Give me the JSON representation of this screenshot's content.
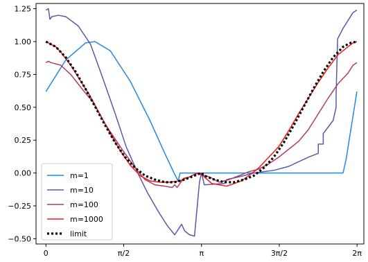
{
  "chart_data": {
    "type": "line",
    "title": "",
    "xlabel": "",
    "ylabel": "",
    "xlim": [
      -0.2,
      6.42
    ],
    "ylim": [
      -0.54,
      1.29
    ],
    "x_ticks": [
      {
        "value": 0,
        "label": "0"
      },
      {
        "value": 1.5708,
        "label": "π/2"
      },
      {
        "value": 3.1416,
        "label": "π"
      },
      {
        "value": 4.7124,
        "label": "3π/2"
      },
      {
        "value": 6.2832,
        "label": "2π"
      }
    ],
    "y_ticks": [
      {
        "value": -0.5,
        "label": "−0.50"
      },
      {
        "value": -0.25,
        "label": "−0.25"
      },
      {
        "value": 0.0,
        "label": "0.00"
      },
      {
        "value": 0.25,
        "label": "0.25"
      },
      {
        "value": 0.5,
        "label": "0.50"
      },
      {
        "value": 0.75,
        "label": "0.75"
      },
      {
        "value": 1.0,
        "label": "1.00"
      },
      {
        "value": 1.25,
        "label": "1.25"
      }
    ],
    "grid": false,
    "legend_position": "lower-left",
    "series": [
      {
        "name": "m=1",
        "color": "#1f87e8",
        "style": "solid",
        "points": [
          [
            0,
            0.62
          ],
          [
            0.4,
            0.86
          ],
          [
            0.8,
            0.99
          ],
          [
            0.99,
            1.0
          ],
          [
            1.3,
            0.93
          ],
          [
            1.7,
            0.7
          ],
          [
            2.1,
            0.4
          ],
          [
            2.4,
            0.15
          ],
          [
            2.6,
            -0.01
          ],
          [
            2.67,
            -0.06
          ],
          [
            2.71,
            0.0
          ],
          [
            6.0,
            0.0
          ],
          [
            6.06,
            0.1
          ],
          [
            6.28,
            0.62
          ]
        ]
      },
      {
        "name": "m=10",
        "color": "#5459a8",
        "style": "solid",
        "points": [
          [
            0,
            1.24
          ],
          [
            0.05,
            1.25
          ],
          [
            0.08,
            1.17
          ],
          [
            0.12,
            1.19
          ],
          [
            0.25,
            1.2
          ],
          [
            0.4,
            1.19
          ],
          [
            0.65,
            1.12
          ],
          [
            0.9,
            0.98
          ],
          [
            1.15,
            0.72
          ],
          [
            1.4,
            0.45
          ],
          [
            1.62,
            0.2
          ],
          [
            1.88,
            -0.02
          ],
          [
            2.05,
            -0.15
          ],
          [
            2.28,
            -0.3
          ],
          [
            2.45,
            -0.4
          ],
          [
            2.6,
            -0.47
          ],
          [
            2.74,
            -0.39
          ],
          [
            2.8,
            -0.44
          ],
          [
            2.9,
            -0.47
          ],
          [
            3.0,
            -0.48
          ],
          [
            3.1,
            -0.07
          ],
          [
            3.14,
            0.0
          ],
          [
            3.2,
            -0.09
          ],
          [
            3.6,
            -0.08
          ],
          [
            3.65,
            -0.05
          ],
          [
            4.0,
            -0.02
          ],
          [
            4.2,
            0.0
          ],
          [
            4.6,
            0.02
          ],
          [
            4.9,
            0.05
          ],
          [
            5.3,
            0.12
          ],
          [
            5.5,
            0.15
          ],
          [
            5.5,
            0.22
          ],
          [
            5.6,
            0.22
          ],
          [
            5.6,
            0.3
          ],
          [
            5.7,
            0.35
          ],
          [
            5.8,
            0.4
          ],
          [
            5.86,
            0.5
          ],
          [
            5.86,
            0.6
          ],
          [
            5.89,
            1.02
          ],
          [
            6.0,
            1.1
          ],
          [
            6.1,
            1.16
          ],
          [
            6.2,
            1.22
          ],
          [
            6.28,
            1.24
          ]
        ]
      },
      {
        "name": "m=100",
        "color": "#b03a62",
        "style": "solid",
        "points": [
          [
            0,
            0.84
          ],
          [
            0.05,
            0.85
          ],
          [
            0.1,
            0.84
          ],
          [
            0.3,
            0.82
          ],
          [
            0.5,
            0.75
          ],
          [
            0.75,
            0.63
          ],
          [
            0.95,
            0.54
          ],
          [
            1.2,
            0.37
          ],
          [
            1.5,
            0.2
          ],
          [
            1.8,
            0.04
          ],
          [
            2.0,
            -0.05
          ],
          [
            2.1,
            -0.07
          ],
          [
            2.2,
            -0.09
          ],
          [
            2.4,
            -0.1
          ],
          [
            2.55,
            -0.11
          ],
          [
            2.6,
            -0.09
          ],
          [
            2.65,
            -0.11
          ],
          [
            2.78,
            -0.04
          ],
          [
            2.9,
            -0.03
          ],
          [
            3.0,
            -0.01
          ],
          [
            3.1,
            0.0
          ],
          [
            3.2,
            -0.02
          ],
          [
            3.3,
            -0.03
          ],
          [
            3.5,
            -0.07
          ],
          [
            3.6,
            -0.06
          ],
          [
            3.7,
            -0.05
          ],
          [
            3.9,
            -0.02
          ],
          [
            4.1,
            0.01
          ],
          [
            4.3,
            0.03
          ],
          [
            4.5,
            0.07
          ],
          [
            4.7,
            0.12
          ],
          [
            4.9,
            0.18
          ],
          [
            5.1,
            0.24
          ],
          [
            5.3,
            0.33
          ],
          [
            5.5,
            0.45
          ],
          [
            5.7,
            0.57
          ],
          [
            5.9,
            0.68
          ],
          [
            6.1,
            0.76
          ],
          [
            6.2,
            0.82
          ],
          [
            6.28,
            0.84
          ]
        ]
      },
      {
        "name": "m=1000",
        "color": "#ee1b1b",
        "style": "solid",
        "points": [
          [
            0,
            1.0
          ],
          [
            0.1,
            0.98
          ],
          [
            0.2,
            0.96
          ],
          [
            0.3,
            0.92
          ],
          [
            0.5,
            0.82
          ],
          [
            0.7,
            0.7
          ],
          [
            0.9,
            0.58
          ],
          [
            1.1,
            0.44
          ],
          [
            1.3,
            0.3
          ],
          [
            1.5,
            0.17
          ],
          [
            1.7,
            0.06
          ],
          [
            1.9,
            -0.02
          ],
          [
            2.1,
            -0.06
          ],
          [
            2.3,
            -0.07
          ],
          [
            2.5,
            -0.07
          ],
          [
            2.7,
            -0.06
          ],
          [
            2.9,
            -0.03
          ],
          [
            3.0,
            -0.01
          ],
          [
            3.1,
            0.0
          ],
          [
            3.2,
            -0.03
          ],
          [
            3.35,
            -0.08
          ],
          [
            3.5,
            -0.09
          ],
          [
            3.65,
            -0.1
          ],
          [
            3.8,
            -0.08
          ],
          [
            3.95,
            -0.06
          ],
          [
            4.1,
            -0.02
          ],
          [
            4.3,
            0.04
          ],
          [
            4.5,
            0.12
          ],
          [
            4.7,
            0.2
          ],
          [
            4.9,
            0.32
          ],
          [
            5.1,
            0.45
          ],
          [
            5.3,
            0.57
          ],
          [
            5.5,
            0.69
          ],
          [
            5.7,
            0.8
          ],
          [
            5.9,
            0.9
          ],
          [
            6.1,
            0.96
          ],
          [
            6.2,
            0.99
          ],
          [
            6.28,
            1.0
          ]
        ]
      },
      {
        "name": "limit",
        "color": "#000000",
        "style": "dotted",
        "points": [
          [
            0,
            1.0
          ],
          [
            0.2,
            0.96
          ],
          [
            0.4,
            0.88
          ],
          [
            0.6,
            0.77
          ],
          [
            0.8,
            0.64
          ],
          [
            1.0,
            0.5
          ],
          [
            1.2,
            0.36
          ],
          [
            1.4,
            0.23
          ],
          [
            1.6,
            0.12
          ],
          [
            1.8,
            0.04
          ],
          [
            2.0,
            -0.02
          ],
          [
            2.2,
            -0.05
          ],
          [
            2.4,
            -0.07
          ],
          [
            2.6,
            -0.07
          ],
          [
            2.8,
            -0.05
          ],
          [
            3.0,
            -0.02
          ],
          [
            3.1,
            -0.005
          ],
          [
            3.1416,
            0.0
          ],
          [
            3.2,
            -0.02
          ],
          [
            3.4,
            -0.05
          ],
          [
            3.6,
            -0.07
          ],
          [
            3.8,
            -0.07
          ],
          [
            4.0,
            -0.05
          ],
          [
            4.2,
            -0.02
          ],
          [
            4.4,
            0.04
          ],
          [
            4.6,
            0.12
          ],
          [
            4.8,
            0.23
          ],
          [
            5.0,
            0.36
          ],
          [
            5.2,
            0.5
          ],
          [
            5.4,
            0.64
          ],
          [
            5.6,
            0.77
          ],
          [
            5.8,
            0.88
          ],
          [
            6.0,
            0.96
          ],
          [
            6.15,
            0.99
          ],
          [
            6.2832,
            1.0
          ]
        ]
      }
    ]
  }
}
